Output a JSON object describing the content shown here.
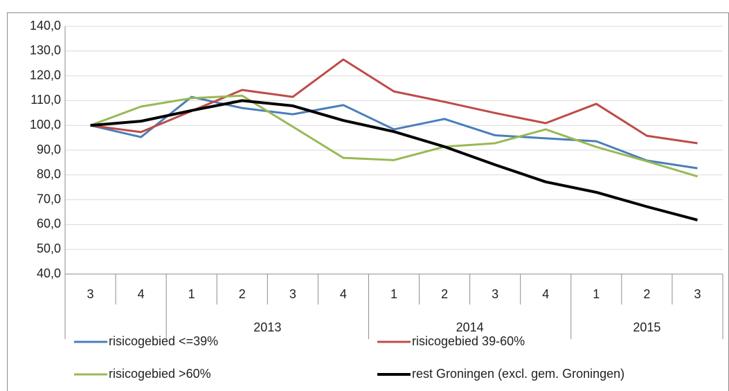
{
  "chart_data": {
    "type": "line",
    "categories": [
      "3",
      "4",
      "1",
      "2",
      "3",
      "4",
      "1",
      "2",
      "3",
      "4",
      "1",
      "2",
      "3"
    ],
    "years": [
      null,
      null,
      "2013",
      "2013",
      "2013",
      "2013",
      "2014",
      "2014",
      "2014",
      "2014",
      "2015",
      "2015",
      "2015"
    ],
    "series": [
      {
        "name": "risicogebied <=39%",
        "color": "#4a7ebb",
        "values": [
          100,
          95.3,
          111.5,
          107,
          104.5,
          108.2,
          98.4,
          102.6,
          96,
          94.8,
          93.6,
          85.8,
          82.7
        ]
      },
      {
        "name": "risicogebied 39-60%",
        "color": "#be4b48",
        "values": [
          100,
          97.3,
          105.8,
          114.3,
          111.5,
          126.6,
          113.7,
          109.5,
          105,
          100.9,
          108.7,
          95.8,
          92.8
        ]
      },
      {
        "name": "risicogebied >60%",
        "color": "#98b954",
        "values": [
          100,
          107.6,
          111,
          112,
          99.5,
          86.9,
          86,
          91.4,
          92.8,
          98.4,
          91.3,
          85.5,
          79.4
        ]
      },
      {
        "name": "rest Groningen (excl. gem. Groningen)",
        "color": "#000000",
        "values": [
          100,
          101.7,
          106,
          110,
          107.9,
          102,
          97.5,
          91.4,
          84.1,
          77.2,
          73,
          67.2,
          61.8
        ]
      }
    ],
    "ylim": [
      40,
      140
    ],
    "yticks": [
      {
        "value": 40,
        "label": "40,0"
      },
      {
        "value": 50,
        "label": "50,0"
      },
      {
        "value": 60,
        "label": "60,0"
      },
      {
        "value": 70,
        "label": "70,0"
      },
      {
        "value": 80,
        "label": "80,0"
      },
      {
        "value": 90,
        "label": "90,0"
      },
      {
        "value": 100,
        "label": "100,0"
      },
      {
        "value": 110,
        "label": "110,0"
      },
      {
        "value": 120,
        "label": "120,0"
      },
      {
        "value": 130,
        "label": "130,0"
      },
      {
        "value": 140,
        "label": "140,0"
      }
    ],
    "grid": true
  }
}
